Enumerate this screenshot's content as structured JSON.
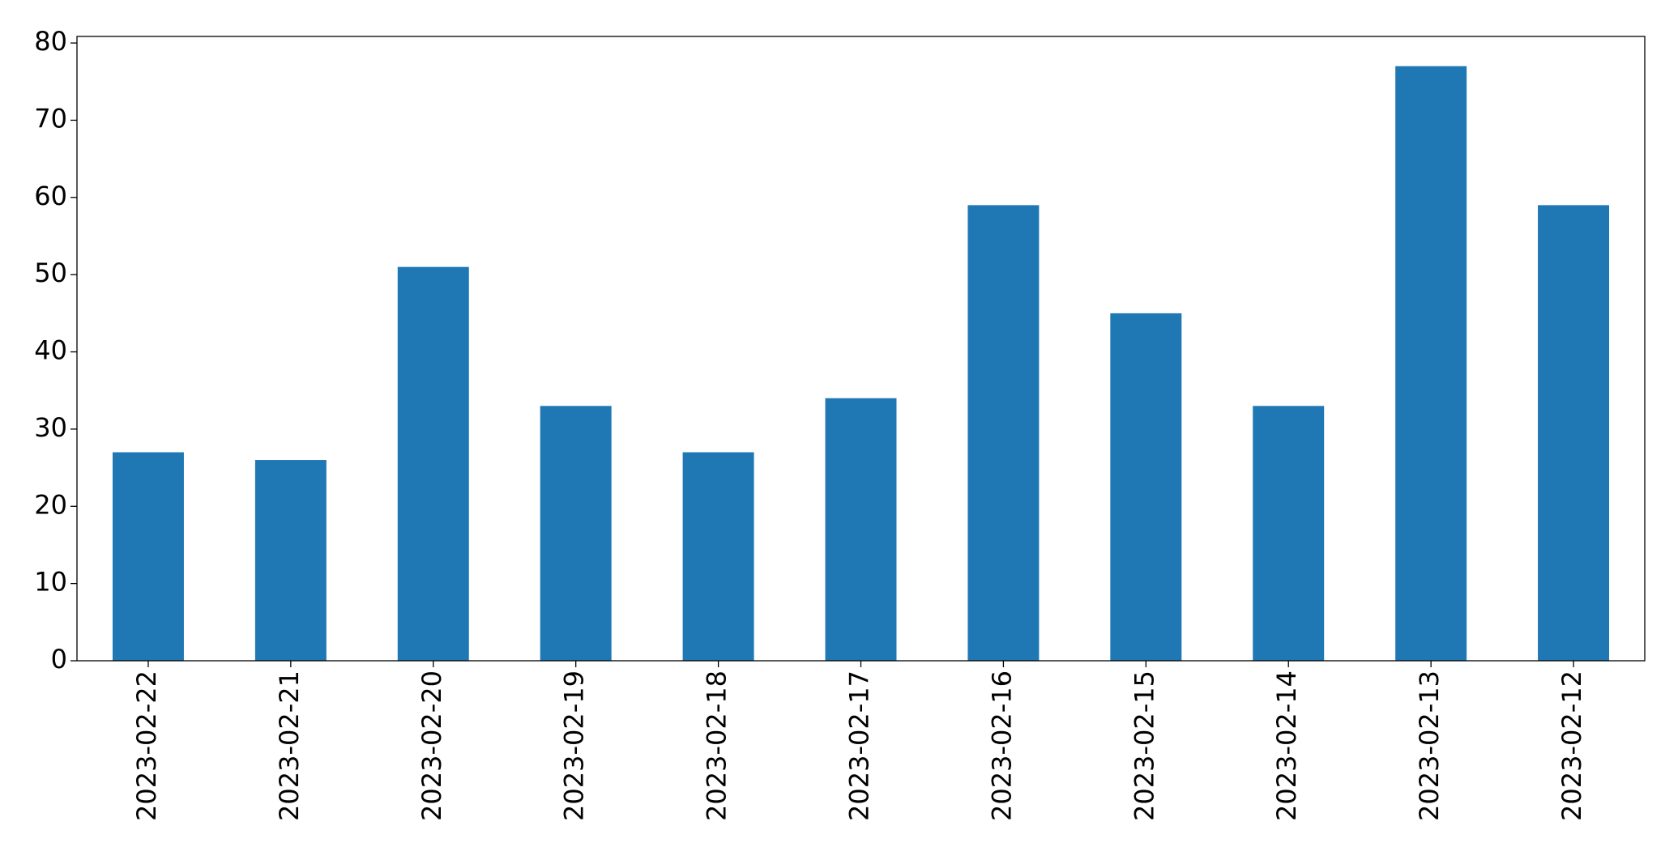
{
  "chart_data": {
    "type": "bar",
    "categories": [
      "2023-02-22",
      "2023-02-21",
      "2023-02-20",
      "2023-02-19",
      "2023-02-18",
      "2023-02-17",
      "2023-02-16",
      "2023-02-15",
      "2023-02-14",
      "2023-02-13",
      "2023-02-12"
    ],
    "values": [
      27,
      26,
      51,
      33,
      27,
      34,
      59,
      45,
      33,
      77,
      59
    ],
    "color": "#1f77b4",
    "ylim": [
      0,
      80.85
    ],
    "yticks": [
      0,
      10,
      20,
      30,
      40,
      50,
      60,
      70,
      80
    ],
    "grid": false
  }
}
